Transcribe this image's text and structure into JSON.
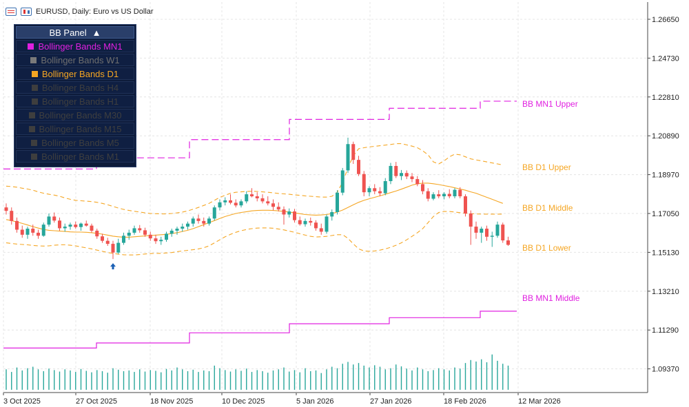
{
  "header": {
    "symbol_title": "EURUSD, Daily:  Euro vs US Dollar",
    "icons": [
      "table-icon",
      "candlestick-icon"
    ]
  },
  "panel": {
    "title": "BB Panel",
    "toggle_glyph": "▲",
    "items": [
      {
        "label": "Bollinger Bands MN1",
        "color": "#e020e0",
        "active": true
      },
      {
        "label": "Bollinger Bands W1",
        "color": "#7a7a7a",
        "active": false
      },
      {
        "label": "Bollinger Bands D1",
        "color": "#f5a623",
        "active": true
      },
      {
        "label": "Bollinger Bands H4",
        "color": "#3e3e3e",
        "active": false
      },
      {
        "label": "Bollinger Bands H1",
        "color": "#3e3e3e",
        "active": false
      },
      {
        "label": "Bollinger Bands M30",
        "color": "#3e3e3e",
        "active": false
      },
      {
        "label": "Bollinger Bands M15",
        "color": "#3e3e3e",
        "active": false
      },
      {
        "label": "Bollinger Bands M5",
        "color": "#3e3e3e",
        "active": false
      },
      {
        "label": "Bollinger Bands M1",
        "color": "#3e3e3e",
        "active": false
      }
    ]
  },
  "band_labels": {
    "mn1_upper": "BB MN1 Upper",
    "d1_upper": "BB D1 Upper",
    "d1_middle": "BB D1 Middle",
    "d1_lower": "BB D1 Lower",
    "mn1_middle": "BB MN1 Middle"
  },
  "chart_data": {
    "type": "candlestick",
    "title": "EURUSD, Daily:  Euro vs US Dollar",
    "price_ticks": [
      "1.26650",
      "1.24730",
      "1.22810",
      "1.20890",
      "1.18970",
      "1.17050",
      "1.15130",
      "1.13210",
      "1.11290",
      "1.09370"
    ],
    "date_ticks": [
      "3 Oct 2025",
      "27 Oct 2025",
      "18 Nov 2025",
      "10 Dec 2025",
      "5 Jan 2026",
      "27 Jan 2026",
      "18 Feb 2026",
      "12 Mar 2026"
    ],
    "ylim": [
      1.082,
      1.275
    ],
    "grid": true,
    "colors": {
      "bull": "#26a69a",
      "bear": "#ef5350",
      "d1_bands": "#f5a623",
      "mn1_bands": "#e020e0",
      "volume": "#26a69a"
    },
    "candles": [
      {
        "o": 1.1735,
        "h": 1.1755,
        "l": 1.17,
        "c": 1.1718
      },
      {
        "o": 1.1718,
        "h": 1.1735,
        "l": 1.165,
        "c": 1.1668
      },
      {
        "o": 1.1668,
        "h": 1.1685,
        "l": 1.161,
        "c": 1.1625
      },
      {
        "o": 1.1625,
        "h": 1.1645,
        "l": 1.1585,
        "c": 1.16
      },
      {
        "o": 1.16,
        "h": 1.164,
        "l": 1.158,
        "c": 1.163
      },
      {
        "o": 1.163,
        "h": 1.165,
        "l": 1.1595,
        "c": 1.161
      },
      {
        "o": 1.161,
        "h": 1.1625,
        "l": 1.158,
        "c": 1.1595
      },
      {
        "o": 1.1595,
        "h": 1.166,
        "l": 1.159,
        "c": 1.165
      },
      {
        "o": 1.165,
        "h": 1.1705,
        "l": 1.164,
        "c": 1.169
      },
      {
        "o": 1.169,
        "h": 1.171,
        "l": 1.166,
        "c": 1.167
      },
      {
        "o": 1.167,
        "h": 1.1685,
        "l": 1.162,
        "c": 1.1632
      },
      {
        "o": 1.1632,
        "h": 1.1655,
        "l": 1.1615,
        "c": 1.164
      },
      {
        "o": 1.164,
        "h": 1.166,
        "l": 1.1625,
        "c": 1.165
      },
      {
        "o": 1.165,
        "h": 1.1665,
        "l": 1.163,
        "c": 1.1638
      },
      {
        "o": 1.1638,
        "h": 1.166,
        "l": 1.162,
        "c": 1.1655
      },
      {
        "o": 1.1655,
        "h": 1.167,
        "l": 1.164,
        "c": 1.1645
      },
      {
        "o": 1.1645,
        "h": 1.1655,
        "l": 1.161,
        "c": 1.162
      },
      {
        "o": 1.162,
        "h": 1.163,
        "l": 1.158,
        "c": 1.1592
      },
      {
        "o": 1.1592,
        "h": 1.1605,
        "l": 1.156,
        "c": 1.157
      },
      {
        "o": 1.157,
        "h": 1.1585,
        "l": 1.1545,
        "c": 1.1555
      },
      {
        "o": 1.1555,
        "h": 1.157,
        "l": 1.148,
        "c": 1.1512
      },
      {
        "o": 1.1512,
        "h": 1.158,
        "l": 1.1505,
        "c": 1.156
      },
      {
        "o": 1.156,
        "h": 1.161,
        "l": 1.155,
        "c": 1.1595
      },
      {
        "o": 1.1595,
        "h": 1.1625,
        "l": 1.1575,
        "c": 1.161
      },
      {
        "o": 1.161,
        "h": 1.1645,
        "l": 1.16,
        "c": 1.1632
      },
      {
        "o": 1.1632,
        "h": 1.1648,
        "l": 1.161,
        "c": 1.1622
      },
      {
        "o": 1.1622,
        "h": 1.1635,
        "l": 1.159,
        "c": 1.16
      },
      {
        "o": 1.16,
        "h": 1.1615,
        "l": 1.157,
        "c": 1.1582
      },
      {
        "o": 1.1582,
        "h": 1.16,
        "l": 1.1555,
        "c": 1.1568
      },
      {
        "o": 1.1568,
        "h": 1.159,
        "l": 1.155,
        "c": 1.1575
      },
      {
        "o": 1.1575,
        "h": 1.1615,
        "l": 1.1565,
        "c": 1.1605
      },
      {
        "o": 1.1605,
        "h": 1.163,
        "l": 1.159,
        "c": 1.162
      },
      {
        "o": 1.162,
        "h": 1.164,
        "l": 1.16,
        "c": 1.163
      },
      {
        "o": 1.163,
        "h": 1.1655,
        "l": 1.1615,
        "c": 1.164
      },
      {
        "o": 1.164,
        "h": 1.1665,
        "l": 1.1625,
        "c": 1.1655
      },
      {
        "o": 1.1655,
        "h": 1.169,
        "l": 1.164,
        "c": 1.168
      },
      {
        "o": 1.168,
        "h": 1.17,
        "l": 1.1655,
        "c": 1.1668
      },
      {
        "o": 1.1668,
        "h": 1.1685,
        "l": 1.164,
        "c": 1.1655
      },
      {
        "o": 1.1655,
        "h": 1.169,
        "l": 1.1645,
        "c": 1.168
      },
      {
        "o": 1.168,
        "h": 1.1745,
        "l": 1.167,
        "c": 1.1735
      },
      {
        "o": 1.1735,
        "h": 1.1775,
        "l": 1.172,
        "c": 1.176
      },
      {
        "o": 1.176,
        "h": 1.1785,
        "l": 1.1745,
        "c": 1.177
      },
      {
        "o": 1.177,
        "h": 1.18,
        "l": 1.175,
        "c": 1.1758
      },
      {
        "o": 1.1758,
        "h": 1.1775,
        "l": 1.1735,
        "c": 1.1745
      },
      {
        "o": 1.1745,
        "h": 1.1775,
        "l": 1.1735,
        "c": 1.1765
      },
      {
        "o": 1.1765,
        "h": 1.1815,
        "l": 1.1755,
        "c": 1.18
      },
      {
        "o": 1.18,
        "h": 1.183,
        "l": 1.1785,
        "c": 1.179
      },
      {
        "o": 1.179,
        "h": 1.181,
        "l": 1.1765,
        "c": 1.178
      },
      {
        "o": 1.178,
        "h": 1.18,
        "l": 1.1755,
        "c": 1.1765
      },
      {
        "o": 1.1765,
        "h": 1.179,
        "l": 1.1745,
        "c": 1.1755
      },
      {
        "o": 1.1755,
        "h": 1.1775,
        "l": 1.172,
        "c": 1.1738
      },
      {
        "o": 1.1738,
        "h": 1.176,
        "l": 1.1715,
        "c": 1.1725
      },
      {
        "o": 1.1725,
        "h": 1.174,
        "l": 1.165,
        "c": 1.17
      },
      {
        "o": 1.17,
        "h": 1.173,
        "l": 1.1685,
        "c": 1.1715
      },
      {
        "o": 1.1715,
        "h": 1.1728,
        "l": 1.166,
        "c": 1.1672
      },
      {
        "o": 1.1672,
        "h": 1.169,
        "l": 1.1645,
        "c": 1.1652
      },
      {
        "o": 1.1652,
        "h": 1.168,
        "l": 1.164,
        "c": 1.1668
      },
      {
        "o": 1.1668,
        "h": 1.1685,
        "l": 1.1645,
        "c": 1.166
      },
      {
        "o": 1.166,
        "h": 1.1672,
        "l": 1.162,
        "c": 1.1632
      },
      {
        "o": 1.1632,
        "h": 1.1655,
        "l": 1.16,
        "c": 1.1615
      },
      {
        "o": 1.1615,
        "h": 1.17,
        "l": 1.1605,
        "c": 1.169
      },
      {
        "o": 1.169,
        "h": 1.1725,
        "l": 1.167,
        "c": 1.1712
      },
      {
        "o": 1.1712,
        "h": 1.182,
        "l": 1.17,
        "c": 1.1808
      },
      {
        "o": 1.1808,
        "h": 1.193,
        "l": 1.1795,
        "c": 1.1918
      },
      {
        "o": 1.1918,
        "h": 1.208,
        "l": 1.1905,
        "c": 1.2048
      },
      {
        "o": 1.2048,
        "h": 1.206,
        "l": 1.195,
        "c": 1.197
      },
      {
        "o": 1.197,
        "h": 1.199,
        "l": 1.189,
        "c": 1.19
      },
      {
        "o": 1.19,
        "h": 1.1915,
        "l": 1.179,
        "c": 1.181
      },
      {
        "o": 1.181,
        "h": 1.184,
        "l": 1.179,
        "c": 1.183
      },
      {
        "o": 1.183,
        "h": 1.185,
        "l": 1.18,
        "c": 1.1815
      },
      {
        "o": 1.1815,
        "h": 1.1835,
        "l": 1.179,
        "c": 1.1805
      },
      {
        "o": 1.1805,
        "h": 1.188,
        "l": 1.1795,
        "c": 1.1865
      },
      {
        "o": 1.1865,
        "h": 1.1955,
        "l": 1.185,
        "c": 1.194
      },
      {
        "o": 1.194,
        "h": 1.196,
        "l": 1.188,
        "c": 1.189
      },
      {
        "o": 1.189,
        "h": 1.192,
        "l": 1.187,
        "c": 1.1905
      },
      {
        "o": 1.1905,
        "h": 1.1918,
        "l": 1.1875,
        "c": 1.1888
      },
      {
        "o": 1.1888,
        "h": 1.1905,
        "l": 1.186,
        "c": 1.1875
      },
      {
        "o": 1.1875,
        "h": 1.189,
        "l": 1.184,
        "c": 1.185
      },
      {
        "o": 1.185,
        "h": 1.187,
        "l": 1.18,
        "c": 1.1815
      },
      {
        "o": 1.1815,
        "h": 1.183,
        "l": 1.1765,
        "c": 1.1778
      },
      {
        "o": 1.1778,
        "h": 1.181,
        "l": 1.177,
        "c": 1.18
      },
      {
        "o": 1.18,
        "h": 1.182,
        "l": 1.178,
        "c": 1.179
      },
      {
        "o": 1.179,
        "h": 1.181,
        "l": 1.1775,
        "c": 1.1802
      },
      {
        "o": 1.1802,
        "h": 1.1825,
        "l": 1.178,
        "c": 1.179
      },
      {
        "o": 1.179,
        "h": 1.183,
        "l": 1.178,
        "c": 1.1822
      },
      {
        "o": 1.1822,
        "h": 1.1835,
        "l": 1.178,
        "c": 1.179
      },
      {
        "o": 1.179,
        "h": 1.18,
        "l": 1.169,
        "c": 1.1705
      },
      {
        "o": 1.1705,
        "h": 1.172,
        "l": 1.155,
        "c": 1.164
      },
      {
        "o": 1.164,
        "h": 1.1665,
        "l": 1.158,
        "c": 1.161
      },
      {
        "o": 1.161,
        "h": 1.164,
        "l": 1.156,
        "c": 1.163
      },
      {
        "o": 1.163,
        "h": 1.1645,
        "l": 1.157,
        "c": 1.159
      },
      {
        "o": 1.159,
        "h": 1.1615,
        "l": 1.154,
        "c": 1.1595
      },
      {
        "o": 1.1595,
        "h": 1.1665,
        "l": 1.1585,
        "c": 1.165
      },
      {
        "o": 1.165,
        "h": 1.166,
        "l": 1.156,
        "c": 1.1572
      },
      {
        "o": 1.1572,
        "h": 1.159,
        "l": 1.1545,
        "c": 1.155
      }
    ],
    "volume": [
      0.55,
      0.48,
      0.6,
      0.52,
      0.58,
      0.62,
      0.55,
      0.5,
      0.57,
      0.53,
      0.49,
      0.55,
      0.52,
      0.48,
      0.56,
      0.51,
      0.47,
      0.53,
      0.5,
      0.46,
      0.58,
      0.54,
      0.5,
      0.52,
      0.48,
      0.55,
      0.49,
      0.53,
      0.51,
      0.47,
      0.56,
      0.52,
      0.6,
      0.55,
      0.5,
      0.54,
      0.48,
      0.52,
      0.5,
      0.65,
      0.58,
      0.53,
      0.49,
      0.55,
      0.51,
      0.57,
      0.48,
      0.53,
      0.5,
      0.46,
      0.52,
      0.55,
      0.6,
      0.49,
      0.53,
      0.47,
      0.58,
      0.5,
      0.52,
      0.45,
      0.55,
      0.62,
      0.58,
      0.7,
      0.75,
      0.68,
      0.72,
      0.65,
      0.6,
      0.66,
      0.62,
      0.55,
      0.58,
      0.68,
      0.63,
      0.57,
      0.52,
      0.6,
      0.55,
      0.5,
      0.53,
      0.58,
      0.55,
      0.52,
      0.6,
      0.57,
      0.72,
      0.8,
      0.76,
      0.82,
      0.74,
      0.95,
      0.78,
      0.7,
      0.65
    ],
    "d1_upper": [
      1.184,
      1.1838,
      1.1835,
      1.183,
      1.1826,
      1.182,
      1.1812,
      1.1805,
      1.18,
      1.1796,
      1.179,
      1.1782,
      1.1775,
      1.177,
      1.1768,
      1.1766,
      1.1764,
      1.176,
      1.1755,
      1.1748,
      1.174,
      1.1732,
      1.1725,
      1.172,
      1.1716,
      1.1712,
      1.1708,
      1.1705,
      1.1704,
      1.1703,
      1.1703,
      1.1705,
      1.1708,
      1.1712,
      1.1718,
      1.1726,
      1.1735,
      1.1745,
      1.1755,
      1.177,
      1.1785,
      1.1795,
      1.1805,
      1.181,
      1.1812,
      1.1814,
      1.1815,
      1.1814,
      1.1812,
      1.181,
      1.1807,
      1.1804,
      1.1802,
      1.18,
      1.1797,
      1.1795,
      1.1792,
      1.179,
      1.1788,
      1.1786,
      1.1786,
      1.179,
      1.181,
      1.186,
      1.193,
      1.199,
      1.2025,
      1.203,
      1.2034,
      1.2037,
      1.204,
      1.2043,
      1.2046,
      1.205,
      1.205,
      1.2044,
      1.2038,
      1.203,
      1.2015,
      1.1995,
      1.196,
      1.195,
      1.1965,
      1.1985,
      1.1998,
      1.1995,
      1.1985,
      1.1975,
      1.197,
      1.1965,
      1.196,
      1.1955,
      1.195,
      1.1945
    ],
    "d1_middle": [
      1.1675,
      1.167,
      1.1663,
      1.1656,
      1.1648,
      1.164,
      1.1633,
      1.1626,
      1.1622,
      1.162,
      1.1618,
      1.1616,
      1.1614,
      1.1613,
      1.1613,
      1.1612,
      1.161,
      1.1607,
      1.1603,
      1.1598,
      1.1593,
      1.159,
      1.1588,
      1.1588,
      1.159,
      1.1592,
      1.1594,
      1.1596,
      1.1598,
      1.16,
      1.1602,
      1.1606,
      1.161,
      1.1616,
      1.1622,
      1.163,
      1.164,
      1.165,
      1.166,
      1.167,
      1.168,
      1.169,
      1.1698,
      1.1705,
      1.171,
      1.1714,
      1.1718,
      1.172,
      1.1721,
      1.1721,
      1.172,
      1.1718,
      1.1715,
      1.1712,
      1.1708,
      1.1704,
      1.17,
      1.1698,
      1.1697,
      1.1698,
      1.17,
      1.1705,
      1.1712,
      1.1722,
      1.1735,
      1.1748,
      1.176,
      1.177,
      1.1778,
      1.1785,
      1.1792,
      1.18,
      1.1808,
      1.1816,
      1.1825,
      1.1835,
      1.1845,
      1.1852,
      1.1855,
      1.1855,
      1.1852,
      1.1848,
      1.1843,
      1.1838,
      1.1832,
      1.1826,
      1.182,
      1.1812,
      1.1805,
      1.1795,
      1.1785,
      1.1775,
      1.1765,
      1.1755
    ],
    "d1_lower": [
      1.156,
      1.1557,
      1.1554,
      1.1552,
      1.155,
      1.1547,
      1.1545,
      1.1544,
      1.1545,
      1.1548,
      1.155,
      1.155,
      1.1548,
      1.1545,
      1.154,
      1.1535,
      1.153,
      1.1524,
      1.1518,
      1.1512,
      1.1508,
      1.1504,
      1.1501,
      1.15,
      1.15,
      1.1502,
      1.1505,
      1.1507,
      1.1508,
      1.1508,
      1.151,
      1.1512,
      1.1516,
      1.152,
      1.1523,
      1.1526,
      1.153,
      1.1536,
      1.1545,
      1.156,
      1.1575,
      1.159,
      1.1602,
      1.1612,
      1.162,
      1.1626,
      1.163,
      1.1633,
      1.1634,
      1.1634,
      1.1632,
      1.1628,
      1.1624,
      1.1618,
      1.1612,
      1.1605,
      1.1598,
      1.1592,
      1.1589,
      1.159,
      1.1592,
      1.1596,
      1.16,
      1.16,
      1.1582,
      1.1555,
      1.153,
      1.152,
      1.1518,
      1.152,
      1.1524,
      1.153,
      1.1538,
      1.1548,
      1.156,
      1.1575,
      1.1592,
      1.161,
      1.163,
      1.166,
      1.169,
      1.171,
      1.1715,
      1.1715,
      1.1712,
      1.1709,
      1.1706,
      1.1704,
      1.1703,
      1.1702,
      1.1702,
      1.1702,
      1.1702,
      1.1702
    ],
    "mn1_upper_steps": [
      1.1925,
      1.198,
      1.207,
      1.217,
      1.2225,
      1.226
    ],
    "mn1_middle_steps": [
      1.104,
      1.1065,
      1.1115,
      1.116,
      1.119,
      1.1222
    ]
  }
}
